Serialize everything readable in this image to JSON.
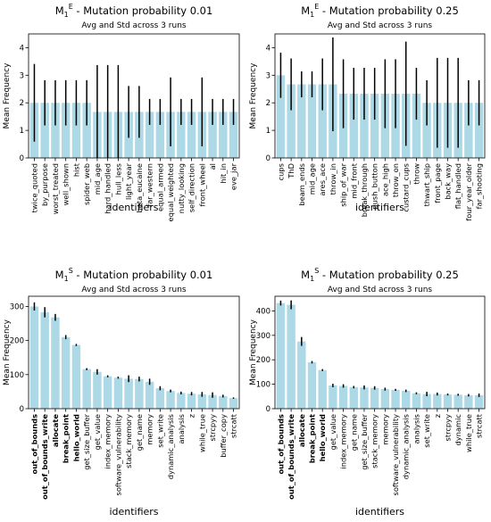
{
  "chart_data": [
    {
      "type": "bar",
      "title": "M",
      "title_sub": "1",
      "title_sup": "E",
      "title_rest": " - Mutation probability 0.01",
      "subtitle": "Avg and Std across 3 runs",
      "xlabel": "identifiers",
      "ylabel": "Mean Frequency",
      "ylim": [
        0,
        4.5
      ],
      "yticks": [
        0,
        1,
        2,
        3,
        4
      ],
      "bar_color": "#add8e6",
      "error_color": "#000000",
      "bold_categories": [],
      "categories": [
        "twice_quoted",
        "by_purpose",
        "worst_treated",
        "well_shown",
        "hist",
        "spider_web",
        "mid_age",
        "hard_handled",
        "hull_less",
        "light_year",
        "beta_eucaine",
        "far_western",
        "equal_armed",
        "equal_weighted",
        "nutty_looking",
        "self_direction",
        "front_wheel",
        "al",
        "hit_in",
        "eve_jar"
      ],
      "values": [
        2.0,
        2.0,
        2.0,
        2.0,
        2.0,
        2.0,
        1.67,
        1.67,
        1.67,
        1.67,
        1.67,
        1.67,
        1.67,
        1.67,
        1.67,
        1.67,
        1.67,
        1.67,
        1.67,
        1.67
      ],
      "errors": [
        1.41,
        0.82,
        0.82,
        0.82,
        0.82,
        0.82,
        1.7,
        1.7,
        1.7,
        0.94,
        0.94,
        0.47,
        0.47,
        1.25,
        0.47,
        0.47,
        1.25,
        0.47,
        0.47,
        0.47
      ]
    },
    {
      "type": "bar",
      "title": "M",
      "title_sub": "1",
      "title_sup": "E",
      "title_rest": " - Mutation probability 0.25",
      "subtitle": "Avg and Std across 3 runs",
      "xlabel": "identifiers",
      "ylabel": "Mean Frequency",
      "ylim": [
        0,
        4.5
      ],
      "yticks": [
        0,
        1,
        2,
        3,
        4
      ],
      "bar_color": "#add8e6",
      "error_color": "#000000",
      "bold_categories": [],
      "categories": [
        "cups",
        "ThD",
        "beam_ends",
        "mid_age",
        "ares_ace",
        "throw_in",
        "ship_of_war",
        "mid_front",
        "break_through",
        "push_button",
        "ace_high",
        "throw_on",
        "custard_cups",
        "throw",
        "thwart_ship",
        "front_page",
        "back_way",
        "flat_handled",
        "four_year_older",
        "far_shooting"
      ],
      "values": [
        3.0,
        2.67,
        2.67,
        2.67,
        2.67,
        2.67,
        2.33,
        2.33,
        2.33,
        2.33,
        2.33,
        2.33,
        2.33,
        2.33,
        2.0,
        2.0,
        2.0,
        2.0,
        2.0,
        2.0
      ],
      "errors": [
        0.82,
        0.94,
        0.47,
        0.47,
        0.94,
        1.7,
        1.25,
        0.94,
        0.94,
        0.94,
        1.25,
        1.25,
        1.89,
        0.94,
        0.82,
        1.63,
        1.63,
        1.63,
        0.82,
        0.82
      ]
    },
    {
      "type": "bar",
      "title": "M",
      "title_sub": "1",
      "title_sup": "S",
      "title_rest": " - Mutation probability 0.01",
      "subtitle": "Avg and Std across 3 runs",
      "xlabel": "identifiers",
      "ylabel": "Mean Frequency",
      "ylim": [
        0,
        330
      ],
      "yticks": [
        0,
        100,
        200,
        300
      ],
      "bar_color": "#add8e6",
      "error_color": "#000000",
      "bold_categories": [
        "out_of_bounds",
        "out_of_bounds_write",
        "allocate",
        "break_point",
        "hello_world"
      ],
      "categories": [
        "out_of_bounds",
        "out_of_bounds_write",
        "allocate",
        "break_point",
        "hello_world",
        "get_size_buffer",
        "get_value",
        "index_memory",
        "software_vulnerability",
        "stack_memory",
        "get_name",
        "memory",
        "set_write",
        "dynamic_analysis",
        "analysis",
        "z",
        "while_true",
        "strcpyy",
        "buffer_copy",
        "strcatt"
      ],
      "values": [
        300,
        283,
        268,
        210,
        187,
        116,
        108,
        95,
        91,
        88,
        87,
        79,
        60,
        52,
        46,
        44,
        42,
        40,
        37,
        31
      ],
      "errors": [
        12,
        15,
        10,
        6,
        3,
        3,
        8,
        3,
        3,
        10,
        7,
        9,
        6,
        4,
        4,
        5,
        7,
        8,
        4,
        2
      ]
    },
    {
      "type": "bar",
      "title": "M",
      "title_sub": "1",
      "title_sup": "S",
      "title_rest": " - Mutation probability 0.25",
      "subtitle": "Avg and Std across 3 runs",
      "xlabel": "identifiers",
      "ylabel": "Mean Frequency",
      "ylim": [
        0,
        460
      ],
      "yticks": [
        0,
        100,
        200,
        300,
        400
      ],
      "bar_color": "#add8e6",
      "error_color": "#000000",
      "bold_categories": [
        "out_of_bounds",
        "out_of_bounds_write",
        "allocate",
        "break_point",
        "hello_world"
      ],
      "categories": [
        "out_of_bounds",
        "out_of_bounds_write",
        "allocate",
        "break_point",
        "hello_world",
        "get_value",
        "index_memory",
        "get_name",
        "get_size_buffer",
        "stack_memory",
        "memory",
        "software_vulnerability",
        "dynamic_analysis",
        "analysis",
        "set_write",
        "z",
        "strcpyy",
        "dynamic",
        "while_true",
        "strcatt"
      ],
      "values": [
        432,
        425,
        275,
        190,
        158,
        95,
        93,
        88,
        87,
        85,
        80,
        77,
        73,
        63,
        60,
        60,
        58,
        57,
        55,
        55
      ],
      "errors": [
        10,
        18,
        18,
        5,
        4,
        7,
        7,
        5,
        8,
        7,
        6,
        4,
        5,
        4,
        9,
        6,
        4,
        4,
        5,
        7
      ]
    }
  ]
}
